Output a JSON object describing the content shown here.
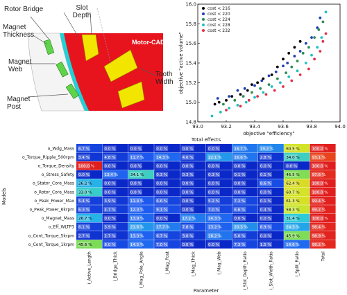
{
  "motor": {
    "brand": "Motor-CAD",
    "labels": [
      "Rotor Bridge",
      "Slot Depth",
      "Magnet Thickness",
      "Magnet Web",
      "Magnet Post",
      "Tooth Width"
    ]
  },
  "chart_data": [
    {
      "type": "scatter",
      "title": "",
      "xlabel": "objective \"efficiency\"",
      "ylabel": "objective \"active volume\"",
      "xlim": [
        93.0,
        94.0
      ],
      "ylim": [
        14.8,
        16.0
      ],
      "xticks": [
        "93.0",
        "93.2",
        "93.4",
        "93.6",
        "93.8",
        "94.0"
      ],
      "yticks": [
        "14.8",
        "15.0",
        "15.2",
        "15.4",
        "15.6",
        "15.8",
        "16.0"
      ],
      "legend_position": "top-left",
      "series": [
        {
          "name": "cost < 216",
          "color": "#000000",
          "points": [
            [
              93.12,
              14.98
            ],
            [
              93.15,
              15.0
            ],
            [
              93.2,
              15.02
            ],
            [
              93.24,
              15.06
            ],
            [
              93.3,
              15.08
            ],
            [
              93.35,
              15.12
            ],
            [
              93.38,
              15.18
            ],
            [
              93.42,
              15.2
            ],
            [
              93.46,
              15.24
            ],
            [
              93.52,
              15.28
            ],
            [
              93.56,
              15.36
            ],
            [
              93.6,
              15.44
            ],
            [
              93.64,
              15.5
            ],
            [
              93.68,
              15.56
            ],
            [
              93.72,
              15.62
            ]
          ]
        },
        {
          "name": "cost < 220",
          "color": "#1f3fb4",
          "points": [
            [
              93.14,
              15.04
            ],
            [
              93.22,
              15.06
            ],
            [
              93.28,
              15.12
            ],
            [
              93.33,
              15.14
            ],
            [
              93.4,
              15.17
            ],
            [
              93.45,
              15.22
            ],
            [
              93.5,
              15.27
            ],
            [
              93.55,
              15.31
            ],
            [
              93.6,
              15.37
            ],
            [
              93.63,
              15.4
            ],
            [
              93.68,
              15.47
            ],
            [
              93.72,
              15.52
            ],
            [
              93.76,
              15.6
            ],
            [
              93.8,
              15.66
            ],
            [
              93.84,
              15.76
            ],
            [
              93.86,
              15.86
            ]
          ]
        },
        {
          "name": "cost < 224",
          "color": "#2e8b57",
          "points": [
            [
              93.18,
              14.98
            ],
            [
              93.26,
              15.02
            ],
            [
              93.32,
              15.06
            ],
            [
              93.38,
              15.1
            ],
            [
              93.44,
              15.14
            ],
            [
              93.5,
              15.18
            ],
            [
              93.56,
              15.24
            ],
            [
              93.62,
              15.3
            ],
            [
              93.66,
              15.36
            ],
            [
              93.7,
              15.42
            ],
            [
              93.74,
              15.5
            ],
            [
              93.78,
              15.56
            ],
            [
              93.82,
              15.66
            ],
            [
              93.85,
              15.74
            ],
            [
              93.88,
              15.82
            ]
          ]
        },
        {
          "name": "cost < 228",
          "color": "#20c0c0",
          "points": [
            [
              93.1,
              14.86
            ],
            [
              93.16,
              14.9
            ],
            [
              93.22,
              14.94
            ],
            [
              93.28,
              14.97
            ],
            [
              93.34,
              15.0
            ],
            [
              93.4,
              15.05
            ],
            [
              93.46,
              15.1
            ],
            [
              93.52,
              15.16
            ],
            [
              93.58,
              15.2
            ],
            [
              93.64,
              15.26
            ],
            [
              93.7,
              15.32
            ],
            [
              93.76,
              15.4
            ],
            [
              93.8,
              15.48
            ],
            [
              93.84,
              15.56
            ],
            [
              93.87,
              15.66
            ],
            [
              93.9,
              15.92
            ]
          ]
        },
        {
          "name": "cost < 232",
          "color": "#e0304a",
          "points": [
            [
              93.2,
              14.92
            ],
            [
              93.3,
              14.96
            ],
            [
              93.36,
              15.02
            ],
            [
              93.42,
              15.06
            ],
            [
              93.48,
              15.08
            ],
            [
              93.54,
              15.12
            ],
            [
              93.6,
              15.16
            ],
            [
              93.66,
              15.22
            ],
            [
              93.72,
              15.28
            ],
            [
              93.78,
              15.34
            ],
            [
              93.82,
              15.44
            ],
            [
              93.86,
              15.52
            ],
            [
              93.88,
              15.62
            ],
            [
              93.9,
              15.7
            ]
          ]
        }
      ]
    },
    {
      "type": "heatmap",
      "title": "Total effects",
      "xlabel": "Parameter",
      "ylabel": "Models",
      "rows": [
        "o_Wdg_Mass",
        "o_Torque_Ripple_500rpm",
        "o_Torque_Density",
        "o_Stress_Safety",
        "o_Stator_Core_Mass",
        "o_Rotor_Core_Mass",
        "o_Peak_Power_Max",
        "o_Peak_Power_6krpm",
        "o_Magnet_Mass",
        "o_Eff_WLTP3",
        "o_Cont_Torque_5krpm",
        "o_Cont_Torque_1krpm"
      ],
      "columns": [
        "i_Active_Length",
        "i_Bridge_Thick",
        "i_Mag_Pole_Angle",
        "i_Mag_Post",
        "i_Mag_Thick",
        "i_Mag_Web",
        "i_Slot_Depth_Ratio",
        "i_Slot_Width_Ratio",
        "i_Split_Ratio",
        "Total"
      ],
      "values": [
        [
          6.7,
          0.0,
          0.0,
          0.0,
          0.0,
          0.0,
          16.7,
          19.2,
          60.5,
          100.0
        ],
        [
          3.4,
          4.8,
          11.7,
          14.3,
          4.6,
          22.1,
          16.6,
          2.8,
          34.0,
          93.1
        ],
        [
          100.0,
          0.0,
          0.0,
          0.0,
          0.0,
          0.0,
          0.0,
          0.0,
          0.0,
          100.0
        ],
        [
          0.0,
          13.4,
          34.1,
          0.3,
          0.3,
          0.3,
          0.1,
          0.1,
          46.5,
          97.6
        ],
        [
          26.2,
          0.0,
          0.0,
          0.0,
          0.0,
          0.0,
          0.0,
          8.6,
          62.4,
          100.0
        ],
        [
          33.0,
          0.0,
          0.0,
          0.0,
          0.0,
          0.0,
          0.0,
          0.0,
          60.7,
          100.0
        ],
        [
          5.4,
          3.9,
          11.4,
          6.6,
          0.0,
          5.2,
          7.2,
          0.1,
          61.3,
          99.4
        ],
        [
          6.3,
          4.7,
          12.3,
          9.1,
          0.0,
          7.0,
          6.6,
          0.4,
          58.3,
          99.2
        ],
        [
          26.7,
          0.0,
          13.9,
          0.0,
          17.2,
          14.3,
          0.0,
          0.0,
          31.4,
          100.0
        ],
        [
          6.1,
          3.9,
          21.6,
          17.7,
          7.8,
          13.2,
          20.3,
          8.9,
          24.3,
          98.4
        ],
        [
          2.7,
          2.7,
          13.3,
          6.7,
          3.0,
          16.2,
          5.0,
          0.0,
          45.9,
          98.9
        ],
        [
          45.6,
          8.0,
          14.5,
          7.0,
          0.0,
          0.0,
          7.3,
          1.5,
          14.6,
          98.2
        ]
      ]
    }
  ]
}
